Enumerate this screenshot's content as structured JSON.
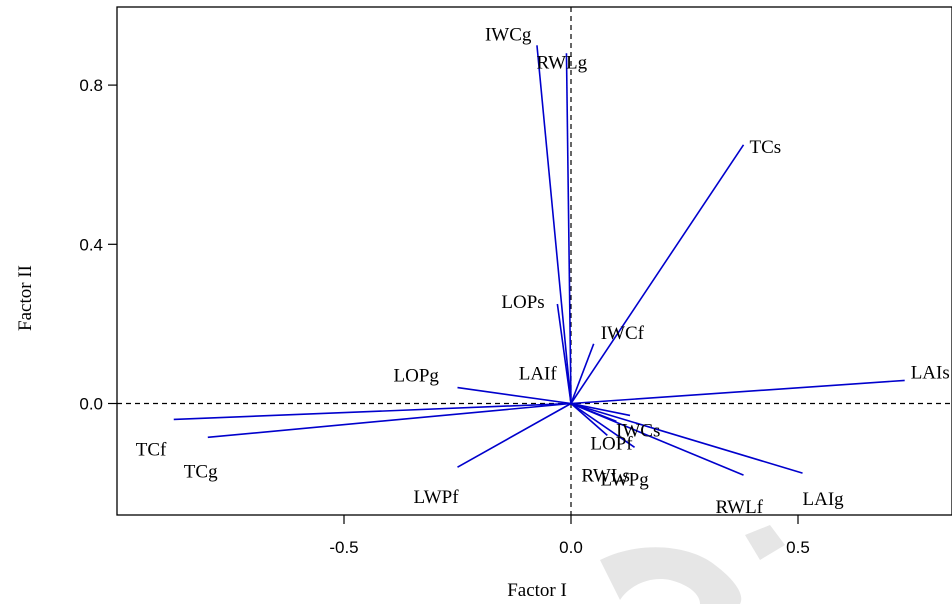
{
  "chart_data": {
    "type": "scatter",
    "subtype": "biplot-vectors",
    "title": "",
    "xlabel": "Factor I",
    "ylabel": "Factor II",
    "xlim": [
      -1.0,
      0.8
    ],
    "ylim": [
      -0.26,
      0.97
    ],
    "xticks": [
      -0.5,
      0.0,
      0.5
    ],
    "xtick_labels": [
      "-0.5",
      "0.0",
      "0.5"
    ],
    "yticks": [
      0.0,
      0.4,
      0.8
    ],
    "ytick_labels": [
      "0.0",
      "0.4",
      "0.8"
    ],
    "reference_lines": {
      "x": 0,
      "y": 0,
      "style": "dashed"
    },
    "vector_color": "#0000cc",
    "vectors": [
      {
        "label": "IWCg",
        "x": -0.075,
        "y": 0.9
      },
      {
        "label": "RWLg",
        "x": -0.01,
        "y": 0.88
      },
      {
        "label": "TCs",
        "x": 0.38,
        "y": 0.65
      },
      {
        "label": "LOPs",
        "x": -0.03,
        "y": 0.25
      },
      {
        "label": "IWCf",
        "x": 0.05,
        "y": 0.15
      },
      {
        "label": "LAIf",
        "x": -0.005,
        "y": 0.06
      },
      {
        "label": "LOPg",
        "x": -0.25,
        "y": 0.04
      },
      {
        "label": "LAIs",
        "x": 0.735,
        "y": 0.058
      },
      {
        "label": "TCf",
        "x": -0.875,
        "y": -0.04
      },
      {
        "label": "TCg",
        "x": -0.8,
        "y": -0.085
      },
      {
        "label": "LWPf",
        "x": -0.25,
        "y": -0.16
      },
      {
        "label": "RWLs",
        "x": 0.08,
        "y": -0.08
      },
      {
        "label": "LOPf",
        "x": 0.1,
        "y": -0.045
      },
      {
        "label": "IWCs",
        "x": 0.13,
        "y": -0.03
      },
      {
        "label": "LWPg",
        "x": 0.14,
        "y": -0.11
      },
      {
        "label": "RWLf",
        "x": 0.38,
        "y": -0.18
      },
      {
        "label": "LAIg",
        "x": 0.51,
        "y": -0.175
      }
    ]
  }
}
